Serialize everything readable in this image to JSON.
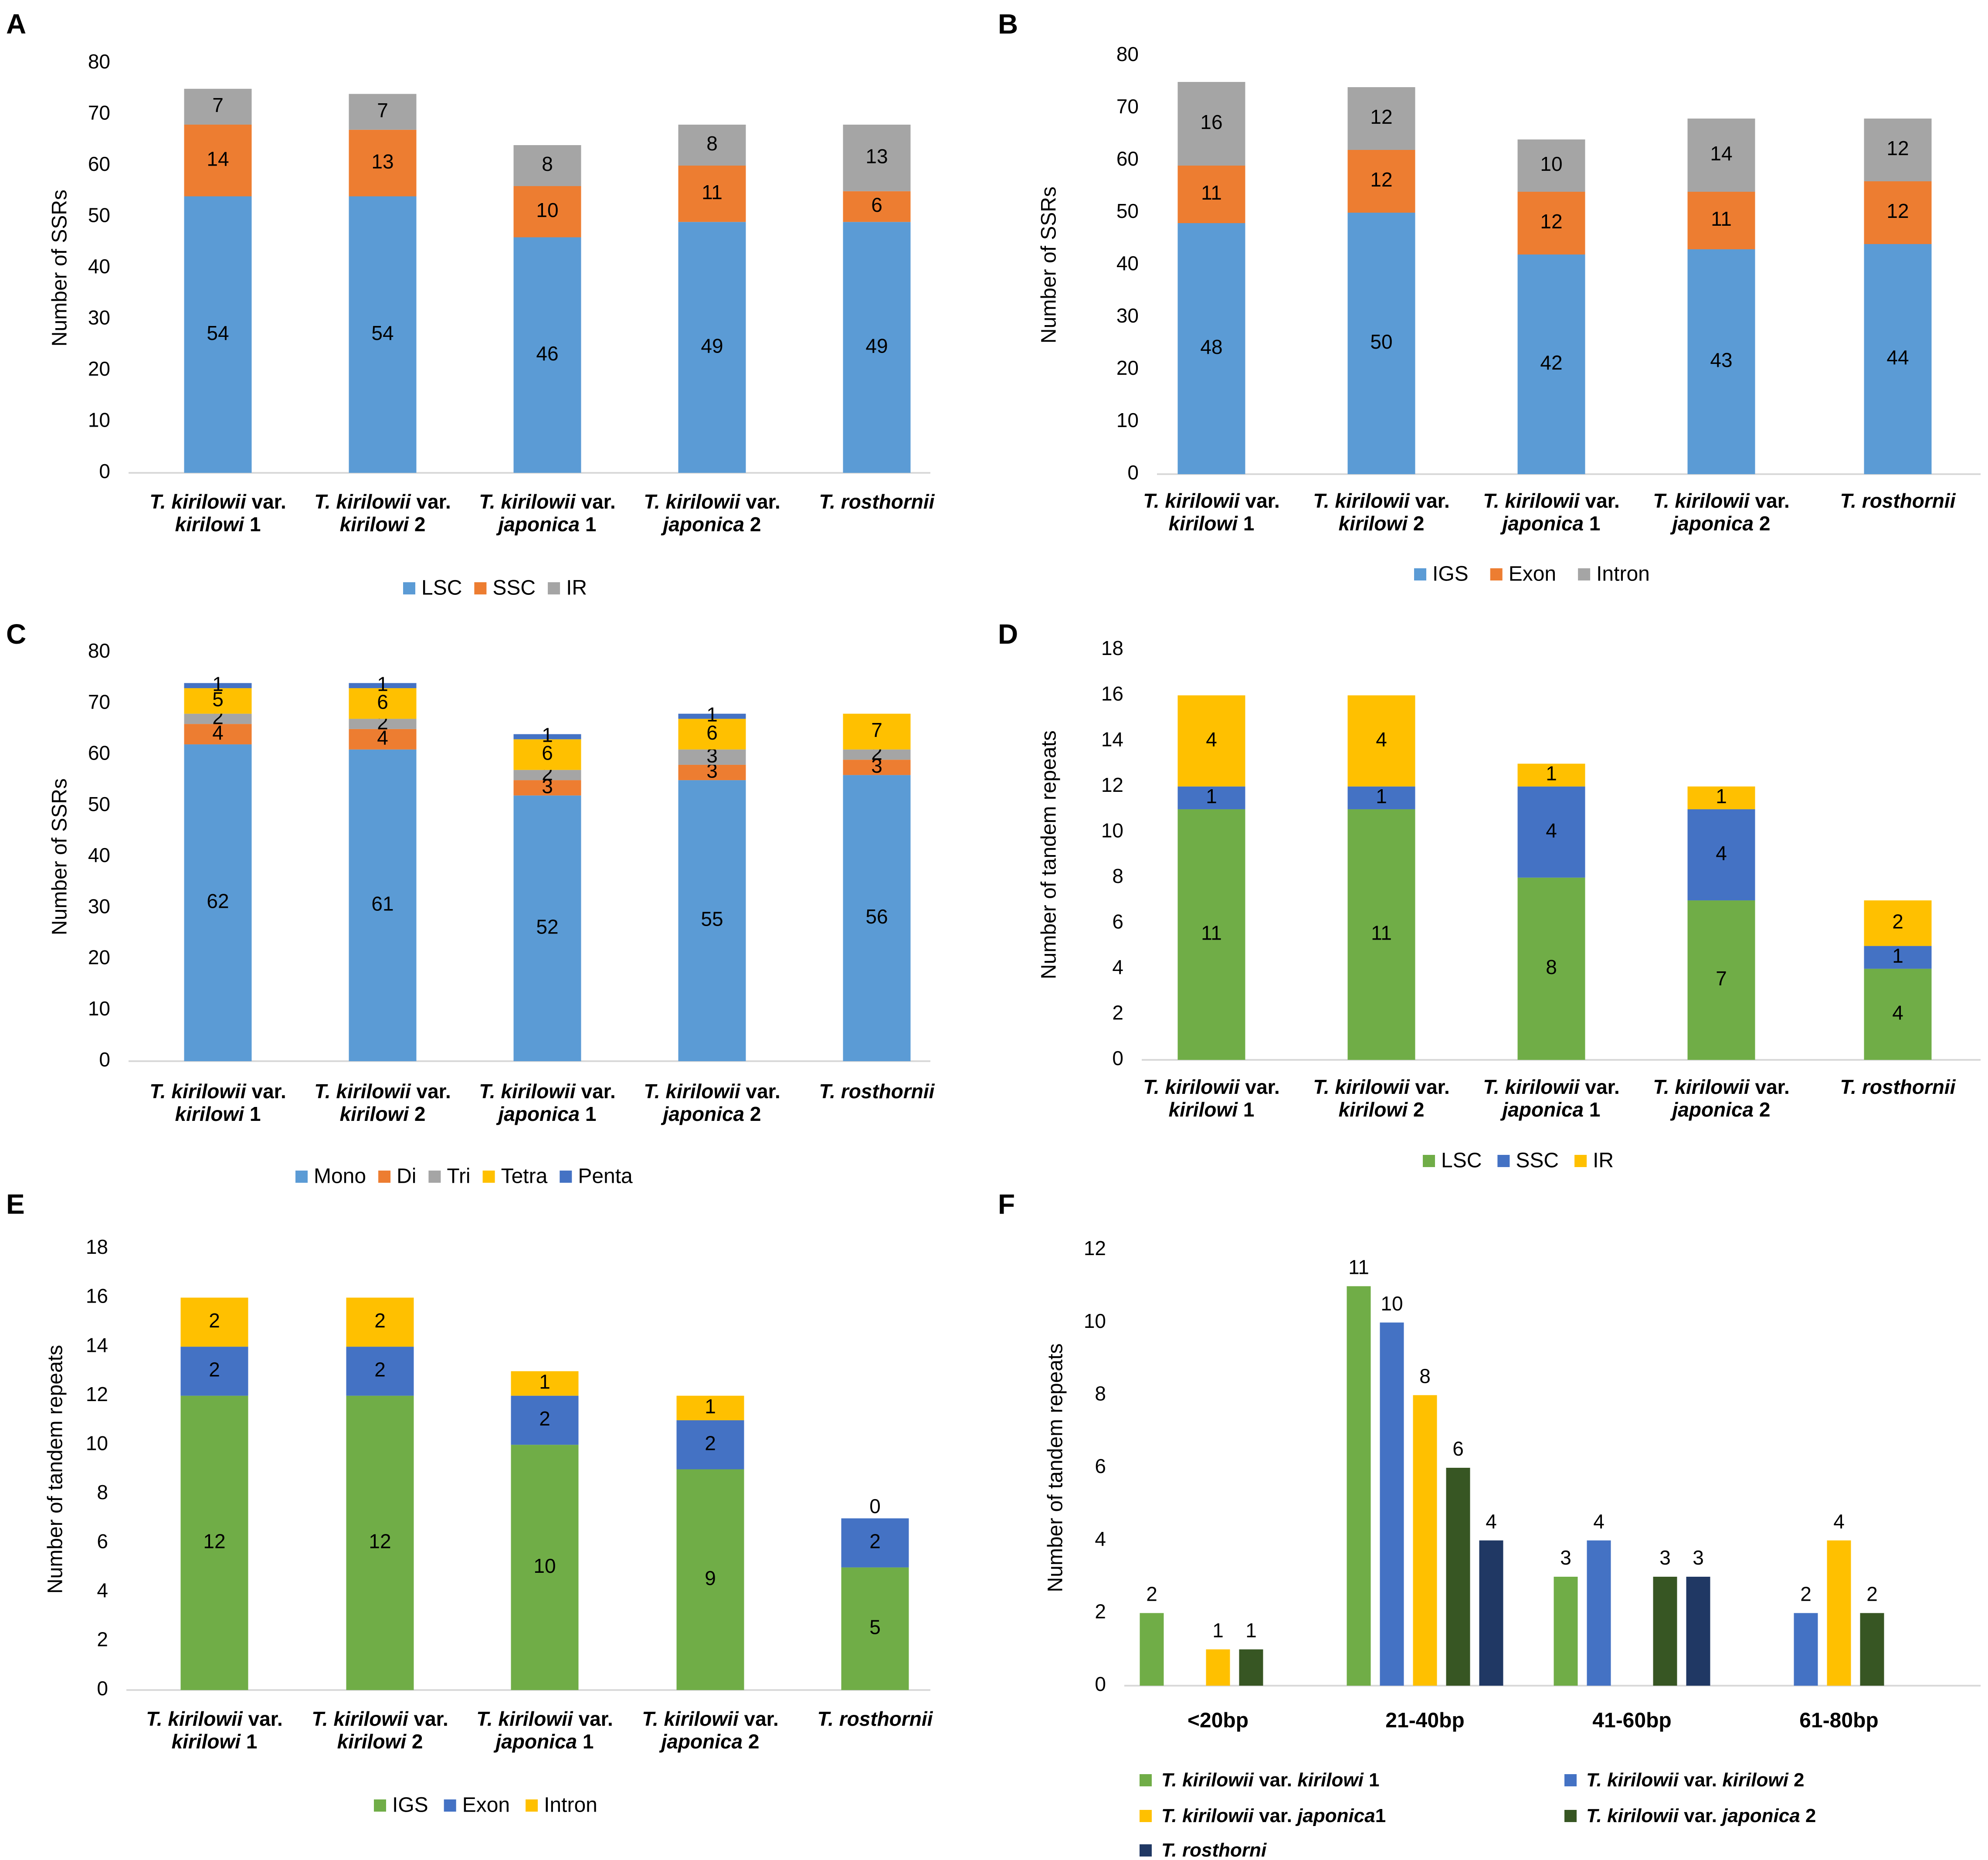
{
  "chart_data": [
    {
      "panel": "A",
      "type": "bar",
      "stacked": true,
      "ylabel": "Number of SSRs",
      "ylim": [
        0,
        80
      ],
      "yticks": [
        0,
        10,
        20,
        30,
        40,
        50,
        60,
        70,
        80
      ],
      "categories": [
        {
          "name": "T. kirilowii",
          "mid": " var.",
          "line2": "kirilowi",
          "suffix": " 1"
        },
        {
          "name": "T. kirilowii",
          "mid": " var.",
          "line2": "kirilowi",
          "suffix": " 2"
        },
        {
          "name": "T. kirilowii",
          "mid": " var.",
          "line2": "japonica",
          "suffix": " 1"
        },
        {
          "name": "T. kirilowii",
          "mid": " var.",
          "line2": "japonica",
          "suffix": " 2"
        },
        {
          "name": "T. rosthornii",
          "mid": "",
          "line2": "",
          "suffix": ""
        }
      ],
      "series": [
        {
          "name": "LSC",
          "color": "#5b9bd5",
          "values": [
            54,
            54,
            46,
            49,
            49
          ]
        },
        {
          "name": "SSC",
          "color": "#ed7d31",
          "values": [
            14,
            13,
            10,
            11,
            6
          ]
        },
        {
          "name": "IR",
          "color": "#a5a5a5",
          "values": [
            7,
            7,
            8,
            8,
            13
          ]
        }
      ],
      "legend": "bottom"
    },
    {
      "panel": "B",
      "type": "bar",
      "stacked": true,
      "ylabel": "Number of SSRs",
      "ylim": [
        0,
        80
      ],
      "yticks": [
        0,
        10,
        20,
        30,
        40,
        50,
        60,
        70,
        80
      ],
      "categories": [
        {
          "name": "T. kirilowii",
          "mid": " var.",
          "line2": "kirilowi",
          "suffix": " 1"
        },
        {
          "name": "T. kirilowii",
          "mid": " var.",
          "line2": "kirilowi",
          "suffix": " 2"
        },
        {
          "name": "T. kirilowii",
          "mid": " var.",
          "line2": "japonica",
          "suffix": " 1"
        },
        {
          "name": "T. kirilowii",
          "mid": " var.",
          "line2": "japonica",
          "suffix": " 2"
        },
        {
          "name": "T. rosthornii",
          "mid": "",
          "line2": "",
          "suffix": ""
        }
      ],
      "series": [
        {
          "name": "IGS",
          "color": "#5b9bd5",
          "values": [
            48,
            50,
            42,
            43,
            44
          ]
        },
        {
          "name": "Exon",
          "color": "#ed7d31",
          "values": [
            11,
            12,
            12,
            11,
            12
          ]
        },
        {
          "name": "Intron",
          "color": "#a5a5a5",
          "values": [
            16,
            12,
            10,
            14,
            12
          ]
        }
      ],
      "legend": "bottom"
    },
    {
      "panel": "C",
      "type": "bar",
      "stacked": true,
      "ylabel": "Number of SSRs",
      "ylim": [
        0,
        80
      ],
      "yticks": [
        0,
        10,
        20,
        30,
        40,
        50,
        60,
        70,
        80
      ],
      "categories": [
        {
          "name": "T. kirilowii",
          "mid": " var.",
          "line2": "kirilowi",
          "suffix": " 1"
        },
        {
          "name": "T. kirilowii",
          "mid": " var.",
          "line2": "kirilowi",
          "suffix": " 2"
        },
        {
          "name": "T. kirilowii",
          "mid": " var.",
          "line2": "japonica",
          "suffix": " 1"
        },
        {
          "name": "T. kirilowii",
          "mid": " var.",
          "line2": "japonica",
          "suffix": " 2"
        },
        {
          "name": "T. rosthornii",
          "mid": "",
          "line2": "",
          "suffix": ""
        }
      ],
      "series": [
        {
          "name": "Mono",
          "color": "#5b9bd5",
          "values": [
            62,
            61,
            52,
            55,
            56
          ]
        },
        {
          "name": "Di",
          "color": "#ed7d31",
          "values": [
            4,
            4,
            3,
            3,
            3
          ]
        },
        {
          "name": "Tri",
          "color": "#a5a5a5",
          "values": [
            2,
            2,
            2,
            3,
            2
          ]
        },
        {
          "name": "Tetra",
          "color": "#ffc000",
          "values": [
            5,
            6,
            6,
            6,
            7
          ]
        },
        {
          "name": "Penta",
          "color": "#4472c4",
          "values": [
            1,
            1,
            1,
            1,
            null
          ]
        }
      ],
      "legend": "bottom"
    },
    {
      "panel": "D",
      "type": "bar",
      "stacked": true,
      "ylabel": "Number of tandem repeats",
      "ylim": [
        0,
        18
      ],
      "yticks": [
        0,
        2,
        4,
        6,
        8,
        10,
        12,
        14,
        16,
        18
      ],
      "categories": [
        {
          "name": "T. kirilowii",
          "mid": " var.",
          "line2": "kirilowi",
          "suffix": " 1"
        },
        {
          "name": "T. kirilowii",
          "mid": " var.",
          "line2": "kirilowi",
          "suffix": " 2"
        },
        {
          "name": "T. kirilowii",
          "mid": " var.",
          "line2": "japonica",
          "suffix": " 1"
        },
        {
          "name": "T. kirilowii",
          "mid": " var.",
          "line2": "japonica",
          "suffix": " 2"
        },
        {
          "name": "T. rosthornii",
          "mid": "",
          "line2": "",
          "suffix": ""
        }
      ],
      "series": [
        {
          "name": "LSC",
          "color": "#70ad47",
          "values": [
            11,
            11,
            8,
            7,
            4
          ]
        },
        {
          "name": "SSC",
          "color": "#4472c4",
          "values": [
            1,
            1,
            4,
            4,
            1
          ]
        },
        {
          "name": "IR",
          "color": "#ffc000",
          "values": [
            4,
            4,
            1,
            1,
            2
          ]
        }
      ],
      "legend": "bottom"
    },
    {
      "panel": "E",
      "type": "bar",
      "stacked": true,
      "ylabel": "Number of tandem repeats",
      "ylim": [
        0,
        18
      ],
      "yticks": [
        0,
        2,
        4,
        6,
        8,
        10,
        12,
        14,
        16,
        18
      ],
      "categories": [
        {
          "name": "T. kirilowii",
          "mid": " var.",
          "line2": "kirilowi",
          "suffix": " 1"
        },
        {
          "name": "T. kirilowii",
          "mid": " var.",
          "line2": "kirilowi",
          "suffix": " 2"
        },
        {
          "name": "T. kirilowii",
          "mid": " var.",
          "line2": "japonica",
          "suffix": " 1"
        },
        {
          "name": "T. kirilowii",
          "mid": " var.",
          "line2": "japonica",
          "suffix": " 2"
        },
        {
          "name": "T. rosthornii",
          "mid": "",
          "line2": "",
          "suffix": ""
        }
      ],
      "series": [
        {
          "name": "IGS",
          "color": "#70ad47",
          "values": [
            12,
            12,
            10,
            9,
            5
          ]
        },
        {
          "name": "Exon",
          "color": "#4472c4",
          "values": [
            2,
            2,
            2,
            2,
            2
          ]
        },
        {
          "name": "Intron",
          "color": "#ffc000",
          "values": [
            2,
            2,
            1,
            1,
            0
          ]
        }
      ],
      "legend": "bottom"
    },
    {
      "panel": "F",
      "type": "bar",
      "stacked": false,
      "ylabel": "Number of tandem repeats",
      "ylim": [
        0,
        12
      ],
      "yticks": [
        0,
        2,
        4,
        6,
        8,
        10,
        12
      ],
      "categories": [
        "<20bp",
        "21-40bp",
        "41-60bp",
        "61-80bp"
      ],
      "series": [
        {
          "name": "T. kirilowii var. kirilowi 1",
          "legend": [
            {
              "t": "T. kirilowii",
              "i": true
            },
            {
              "t": " var. ",
              "i": false
            },
            {
              "t": "kirilowi",
              "i": true
            },
            {
              "t": " 1",
              "i": false
            }
          ],
          "color": "#70ad47",
          "values": [
            2,
            11,
            3,
            null
          ]
        },
        {
          "name": "T. kirilowii var. kirilowi 2",
          "legend": [
            {
              "t": "T. kirilowii",
              "i": true
            },
            {
              "t": " var. ",
              "i": false
            },
            {
              "t": "kirilowi",
              "i": true
            },
            {
              "t": " 2",
              "i": false
            }
          ],
          "color": "#4472c4",
          "values": [
            null,
            10,
            4,
            2
          ]
        },
        {
          "name": "T. kirilowii var. japonica1",
          "legend": [
            {
              "t": "T. kirilowii",
              "i": true
            },
            {
              "t": " var. ",
              "i": false
            },
            {
              "t": "japonica",
              "i": true
            },
            {
              "t": "1",
              "i": false
            }
          ],
          "color": "#ffc000",
          "values": [
            1,
            8,
            null,
            4
          ]
        },
        {
          "name": "T. kirilowii var. japonica 2",
          "legend": [
            {
              "t": "T. kirilowii",
              "i": true
            },
            {
              "t": " var. ",
              "i": false
            },
            {
              "t": "japonica",
              "i": true
            },
            {
              "t": " 2",
              "i": false
            }
          ],
          "color": "#375623",
          "values": [
            1,
            6,
            3,
            2
          ]
        },
        {
          "name": "T. rosthorni",
          "legend": [
            {
              "t": "T. rosthorni",
              "i": true
            }
          ],
          "color": "#203864",
          "values": [
            null,
            4,
            3,
            null
          ]
        }
      ],
      "legend": "bottom"
    }
  ]
}
